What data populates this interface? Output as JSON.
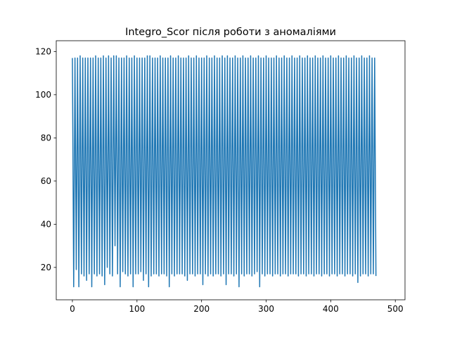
{
  "chart_data": {
    "type": "line",
    "title": "Integro_Scor після роботи з аномаліями",
    "xlabel": "",
    "ylabel": "",
    "xlim": [
      -25,
      515
    ],
    "ylim": [
      5,
      125
    ],
    "xticks": [
      0,
      100,
      200,
      300,
      400,
      500
    ],
    "yticks": [
      20,
      40,
      60,
      80,
      100,
      120
    ],
    "grid": false,
    "legend": "none",
    "n_points": 491,
    "value_range": [
      11,
      119
    ],
    "series": [
      {
        "color": "#1f77b4",
        "sample_x": [
          0,
          2,
          4,
          6,
          8,
          10,
          12,
          14,
          16,
          18,
          20,
          22,
          24,
          26,
          28,
          30,
          32,
          34,
          36,
          38,
          40,
          42,
          44,
          46,
          48,
          50,
          52,
          54,
          56,
          58,
          60,
          62,
          64,
          66,
          68,
          70,
          72,
          74,
          76,
          78,
          80,
          82,
          84,
          86,
          88,
          90,
          92,
          94,
          96,
          98,
          100,
          102,
          104,
          106,
          108,
          110,
          112,
          114,
          116,
          118,
          120,
          122,
          124,
          126,
          128,
          130,
          132,
          134,
          136,
          138,
          140,
          142,
          144,
          146,
          148,
          150,
          152,
          154,
          156,
          158,
          160,
          162,
          164,
          166,
          168,
          170,
          172,
          174,
          176,
          178,
          180,
          182,
          184,
          186,
          188,
          190,
          192,
          194,
          196,
          198,
          200,
          202,
          204,
          206,
          208,
          210,
          212,
          214,
          216,
          218,
          220,
          222,
          224,
          226,
          228,
          230,
          232,
          234,
          236,
          238,
          240,
          242,
          244,
          246,
          248,
          250,
          252,
          254,
          256,
          258,
          260,
          262,
          264,
          266,
          268,
          270,
          272,
          274,
          276,
          278,
          280,
          282,
          284,
          286,
          288,
          290,
          292,
          294,
          296,
          298,
          300,
          302,
          304,
          306,
          308,
          310,
          312,
          314,
          316,
          318,
          320,
          322,
          324,
          326,
          328,
          330,
          332,
          334,
          336,
          338,
          340,
          342,
          344,
          346,
          348,
          350,
          352,
          354,
          356,
          358,
          360,
          362,
          364,
          366,
          368,
          370,
          372,
          374,
          376,
          378,
          380,
          382,
          384,
          386,
          388,
          390,
          392,
          394,
          396,
          398,
          400,
          402,
          404,
          406,
          408,
          410,
          412,
          414,
          416,
          418,
          420,
          422,
          424,
          426,
          428,
          430,
          432,
          434,
          436,
          438,
          440,
          442,
          444,
          446,
          448,
          450,
          452,
          454,
          456,
          458,
          460,
          462,
          464,
          466,
          468,
          470,
          472,
          474,
          476,
          478,
          480,
          482,
          484,
          486,
          488,
          490
        ],
        "sample_y": [
          117,
          11,
          117,
          19,
          117,
          11,
          118,
          17,
          117,
          16,
          117,
          14,
          117,
          17,
          117,
          11,
          117,
          17,
          118,
          16,
          117,
          17,
          117,
          16,
          118,
          12,
          117,
          20,
          118,
          17,
          117,
          16,
          118,
          30,
          118,
          17,
          117,
          11,
          117,
          18,
          117,
          17,
          118,
          16,
          117,
          17,
          117,
          11,
          118,
          17,
          117,
          17,
          117,
          18,
          117,
          14,
          117,
          17,
          118,
          11,
          118,
          16,
          117,
          17,
          117,
          17,
          117,
          16,
          118,
          17,
          117,
          17,
          117,
          16,
          117,
          11,
          118,
          17,
          117,
          16,
          117,
          17,
          118,
          17,
          117,
          17,
          117,
          16,
          117,
          14,
          118,
          17,
          117,
          17,
          117,
          16,
          118,
          17,
          117,
          17,
          117,
          12,
          117,
          17,
          118,
          16,
          117,
          17,
          117,
          16,
          118,
          17,
          117,
          17,
          117,
          16,
          118,
          17,
          117,
          12,
          118,
          17,
          117,
          17,
          117,
          16,
          118,
          17,
          117,
          11,
          117,
          17,
          118,
          16,
          117,
          17,
          117,
          17,
          118,
          16,
          117,
          17,
          117,
          18,
          118,
          11,
          117,
          17,
          117,
          16,
          118,
          17,
          117,
          17,
          117,
          16,
          117,
          17,
          118,
          17,
          117,
          16,
          117,
          17,
          118,
          17,
          117,
          16,
          117,
          17,
          118,
          17,
          117,
          17,
          117,
          16,
          118,
          17,
          117,
          17,
          117,
          16,
          118,
          17,
          117,
          17,
          117,
          16,
          118,
          17,
          117,
          17,
          117,
          16,
          118,
          17,
          117,
          17,
          117,
          16,
          118,
          17,
          117,
          17,
          117,
          16,
          118,
          17,
          117,
          17,
          117,
          16,
          118,
          17,
          117,
          17,
          117,
          16,
          118,
          17,
          117,
          13,
          117,
          16,
          118,
          17,
          117,
          17,
          117,
          16,
          118,
          17,
          117,
          17,
          117,
          16
        ]
      }
    ]
  }
}
